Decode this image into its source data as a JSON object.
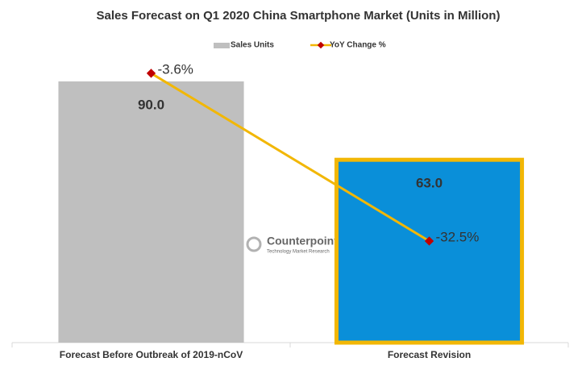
{
  "chart_data": {
    "type": "bar",
    "title": "Sales Forecast on Q1 2020 China Smartphone Market (Units in Million)",
    "categories": [
      "Forecast Before Outbreak of 2019-nCoV",
      "Forecast Revision"
    ],
    "series": [
      {
        "name": "Sales Units",
        "type": "bar",
        "color": "#bfbfbf",
        "colors": [
          "#bfbfbf",
          "#0a8fd9"
        ],
        "edgecolors": [
          null,
          "#f2b705"
        ],
        "values": [
          90,
          63
        ],
        "value_labels": [
          "90.0",
          "63.0"
        ]
      },
      {
        "name": "YoY Change %",
        "type": "line",
        "axis": "y2",
        "color": "#f2b705",
        "marker_color": "#c00000",
        "values": [
          -3.6,
          -32.5
        ],
        "value_labels": [
          "-3.6%",
          "-32.5%"
        ]
      }
    ],
    "ylim": [
      0,
      100
    ],
    "y2lim": [
      -50,
      0
    ],
    "legend": "top",
    "watermark": {
      "title": "Counterpoint",
      "subtitle": "Technology Market Research"
    }
  }
}
